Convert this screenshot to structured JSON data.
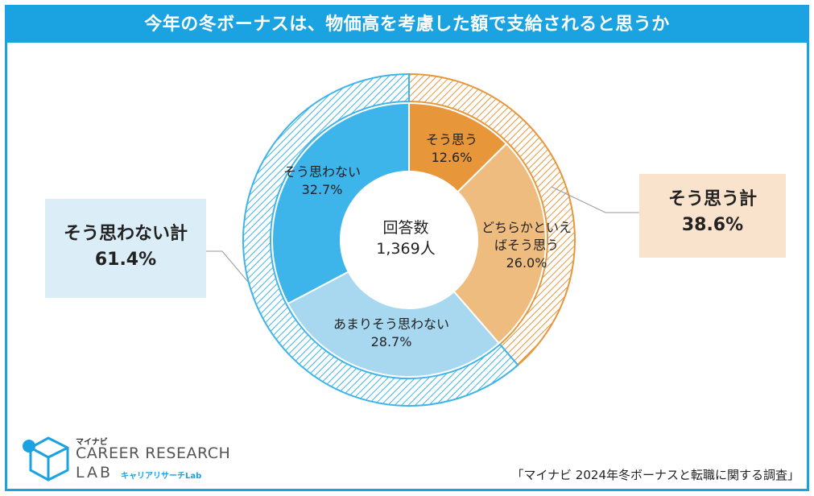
{
  "title": "今年の冬ボーナスは、物価高を考慮した額で支給されると思うか",
  "center": {
    "label": "回答数",
    "value": "1,369人"
  },
  "chart_data": {
    "type": "pie",
    "title": "今年の冬ボーナスは、物価高を考慮した額で支給されると思うか",
    "unit": "%",
    "slices": [
      {
        "label": "そう思う",
        "value": 12.6,
        "color": "#e8963a"
      },
      {
        "label": "どちらかといえばそう思う",
        "label_lines": [
          "どちらかといえ",
          "ばそう思う"
        ],
        "value": 26.0,
        "color": "#efbc80"
      },
      {
        "label": "あまりそう思わない",
        "value": 28.7,
        "color": "#a8d8ef"
      },
      {
        "label": "そう思わない",
        "value": 32.7,
        "color": "#3db4ea"
      }
    ],
    "slice_labels": [
      "12.6%",
      "26.0%",
      "28.7%",
      "32.7%"
    ],
    "groups": [
      {
        "label": "そう思う計",
        "value": 38.6,
        "value_label": "38.6%",
        "color": "#e8963a"
      },
      {
        "label": "そう思わない計",
        "value": 61.4,
        "value_label": "61.4%",
        "color": "#3db4ea"
      }
    ]
  },
  "logo": {
    "sup": "マイナビ",
    "main": "CAREER RESEARCH",
    "lab": "LAB",
    "sub": "キャリアリサーチLab"
  },
  "source": "「マイナビ 2024年冬ボーナスと転職に関する調査」"
}
